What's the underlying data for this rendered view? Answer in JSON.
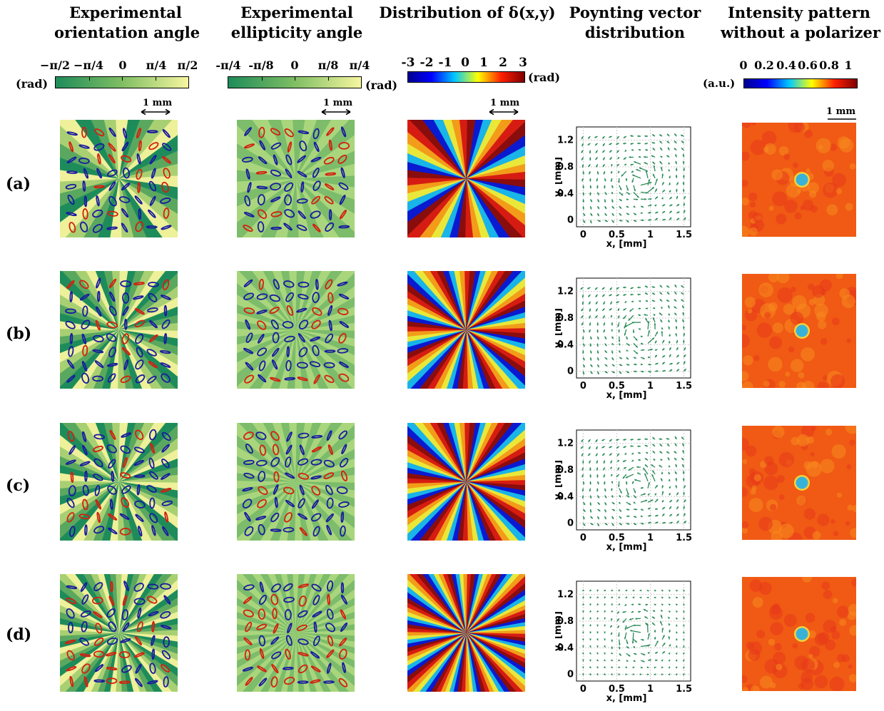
{
  "headers": {
    "col1": [
      "Experimental",
      "orientation angle"
    ],
    "col2": [
      "Experimental",
      "ellipticity angle"
    ],
    "col3": [
      "Distribution of δ(x,y)"
    ],
    "col4": [
      "Poynting vector",
      "distribution"
    ],
    "col5": [
      "Intensity pattern",
      "without a polarizer"
    ]
  },
  "colorbars": {
    "orientation": {
      "ticks": [
        "−π/2",
        "−π/4",
        "0",
        "π/4",
        "π/2"
      ],
      "unit": "(rad)",
      "colors": [
        "#1e8c5a",
        "#7fbe63",
        "#f6f6a0"
      ]
    },
    "ellipticity": {
      "ticks": [
        "-π/4",
        "-π/8",
        "0",
        "π/8",
        "π/4"
      ],
      "unit": "(rad)",
      "colors": [
        "#1e8c5a",
        "#7fbe63",
        "#f6f6a0"
      ]
    },
    "delta": {
      "ticks": [
        "-3",
        "-2",
        "-1",
        "0",
        "1",
        "2",
        "3"
      ],
      "unit": "(rad)",
      "colors": [
        "#000090",
        "#0000ff",
        "#00c8ff",
        "#ffff00",
        "#ff2000",
        "#800000"
      ]
    },
    "intensity": {
      "ticks": [
        "0",
        "0.2",
        "0.4",
        "0.6",
        "0.8",
        "1"
      ],
      "unit": "(a.u.)",
      "colors": [
        "#000090",
        "#0000ff",
        "#00c8ff",
        "#ffff00",
        "#ff2000",
        "#800000"
      ]
    }
  },
  "scalebar": "1 mm",
  "rows": [
    {
      "label": "(a)",
      "spokes": 8
    },
    {
      "label": "(b)",
      "spokes": 12
    },
    {
      "label": "(c)",
      "spokes": 12
    },
    {
      "label": "(d)",
      "spokes": 16
    }
  ],
  "colors": {
    "green": "#2a8a57",
    "ellipse_blue": "#1a1aa0",
    "ellipse_red": "#d42010",
    "intensity_bg": "#f05a14",
    "intensity_core": "#39b2d8"
  },
  "chart_data": [
    {
      "type": "quiver",
      "panel": "(a)",
      "xlabel": "x, [mm]",
      "ylabel": "y, [mm]",
      "xticks": [
        "0",
        "0.5",
        "1",
        "1.5"
      ],
      "yticks": [
        "0",
        "0.4",
        "0.8",
        "1.2"
      ],
      "xlim": [
        -0.1,
        1.6
      ],
      "ylim": [
        -0.1,
        1.4
      ],
      "grid": true
    },
    {
      "type": "quiver",
      "panel": "(b)",
      "xlabel": "x, [mm]",
      "ylabel": "y, [mm]",
      "xticks": [
        "0",
        "0.5",
        "1",
        "1.5"
      ],
      "yticks": [
        "0",
        "0.4",
        "0.8",
        "1.2"
      ],
      "xlim": [
        -0.1,
        1.6
      ],
      "ylim": [
        -0.1,
        1.4
      ],
      "grid": true
    },
    {
      "type": "quiver",
      "panel": "(c)",
      "xlabel": "x, [mm]",
      "ylabel": "y, [mm]",
      "xticks": [
        "0",
        "0.5",
        "1",
        "1.5"
      ],
      "yticks": [
        "0",
        "0.4",
        "0.8",
        "1.2"
      ],
      "xlim": [
        -0.1,
        1.6
      ],
      "ylim": [
        -0.1,
        1.4
      ],
      "grid": true
    },
    {
      "type": "quiver",
      "panel": "(d)",
      "xlabel": "x, [mm]",
      "ylabel": "y, [mm]",
      "xticks": [
        "0",
        "0.5",
        "1",
        "1.5"
      ],
      "yticks": [
        "0",
        "0.4",
        "0.8",
        "1.2"
      ],
      "xlim": [
        -0.1,
        1.6
      ],
      "ylim": [
        -0.1,
        1.4
      ],
      "grid": true
    }
  ]
}
